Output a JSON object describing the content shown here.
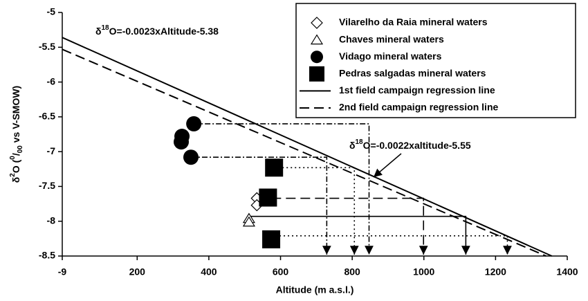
{
  "chart_data": {
    "type": "scatter",
    "xlabel": "Altitude (m a.s.l.)",
    "ylabel": [
      {
        "text": "δ"
      },
      {
        "text": "2",
        "pos": "sup"
      },
      {
        "text": "O ("
      },
      {
        "text": "0",
        "pos": "sup"
      },
      {
        "text": "/"
      },
      {
        "text": "00",
        "pos": "sub"
      },
      {
        "text": " vs V-SMOW)"
      }
    ],
    "xlim": [
      -9,
      1400
    ],
    "xticks": [
      -9,
      200,
      400,
      600,
      800,
      1000,
      1200,
      1400
    ],
    "ylim": [
      -8.5,
      -5
    ],
    "yticks": [
      -8.5,
      -8,
      -7.5,
      -7,
      -6.5,
      -6,
      -5.5,
      -5
    ],
    "series": [
      {
        "name": "Vilarelho da Raia mineral waters",
        "marker": "diamond",
        "color": "#000000",
        "x": [
          534,
          534
        ],
        "y": [
          -7.67,
          -7.77
        ]
      },
      {
        "name": "Chaves mineral waters",
        "marker": "triangle",
        "color": "#000000",
        "x": [
          512,
          512
        ],
        "y": [
          -7.96,
          -8.01
        ]
      },
      {
        "name": "Vidago mineral waters",
        "marker": "circle",
        "color": "#000000",
        "x": [
          358,
          325,
          323,
          350
        ],
        "y": [
          -6.6,
          -6.78,
          -6.86,
          -7.08
        ]
      },
      {
        "name": "Pedras salgadas mineral waters",
        "marker": "square",
        "color": "#000000",
        "x": [
          582,
          565,
          574
        ],
        "y": [
          -7.23,
          -7.66,
          -8.26
        ]
      },
      {
        "name": "1st field campaign regression line",
        "marker": "line",
        "dash": "solid",
        "color": "#000000",
        "x": [
          -9,
          1357
        ],
        "y": [
          -5.36,
          -8.5
        ]
      },
      {
        "name": "2nd field campaign regression line",
        "marker": "line",
        "dash": "dashed",
        "color": "#000000",
        "x": [
          -9,
          1341
        ],
        "y": [
          -5.53,
          -8.5
        ]
      }
    ],
    "projections": [
      {
        "x": [
          358,
          847
        ],
        "y": -6.6,
        "dash": "dashdot"
      },
      {
        "x": [
          350,
          729
        ],
        "y": -7.08,
        "dash": "dashdot"
      },
      {
        "x": [
          582,
          806
        ],
        "y": -7.23,
        "dash": "dotted"
      },
      {
        "x": [
          534,
          999
        ],
        "y": -7.67,
        "dash": "dashed"
      },
      {
        "x": [
          512,
          1117
        ],
        "y": -7.93,
        "dash": "solid"
      },
      {
        "x": [
          574,
          1233
        ],
        "y": -8.21,
        "dash": "dotted"
      }
    ],
    "annotations": [
      {
        "prefix": "δ",
        "sup": "18",
        "text": "O=-0.0023xAltitude-5.38"
      },
      {
        "prefix": "δ",
        "sup": "18",
        "text": "O=-0.0022xaltitude-5.55"
      }
    ]
  }
}
